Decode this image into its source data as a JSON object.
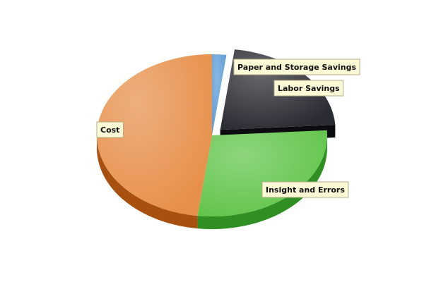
{
  "chart_data": {
    "type": "pie",
    "style": "3d-exploded",
    "legend": "none",
    "slices": [
      {
        "name": "Paper and Storage Savings",
        "value": 2,
        "color": "#5b9bd5",
        "side_color": "#2f6fa8",
        "exploded": false
      },
      {
        "name": "Labor Savings",
        "value": 22,
        "color": "#2b2b33",
        "side_color": "#0c0c10",
        "exploded": true
      },
      {
        "name": "Insight and Errors",
        "value": 28,
        "color": "#62c54a",
        "side_color": "#2f8f22",
        "exploded": false
      },
      {
        "name": "Cost",
        "value": 48,
        "color": "#e7904b",
        "side_color": "#a8500f",
        "exploded": false
      }
    ]
  }
}
